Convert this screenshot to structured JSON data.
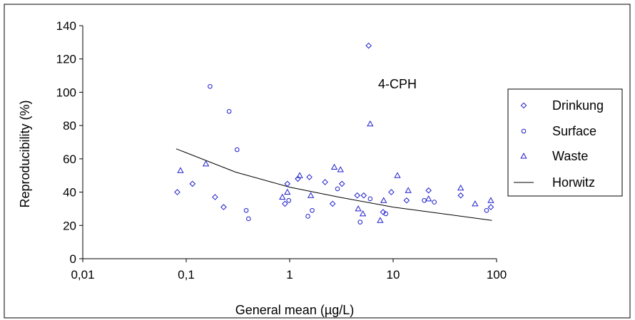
{
  "chart_data": {
    "type": "scatter",
    "xlabel": "General mean (µg/L)",
    "ylabel": "Reproducibility (%)",
    "annotation": "4-CPH",
    "x_scale": "log",
    "xlim": [
      0.01,
      100
    ],
    "ylim": [
      0,
      140
    ],
    "x_ticks": [
      0.01,
      0.1,
      1,
      10,
      100
    ],
    "x_tick_labels": [
      "0,01",
      "0,1",
      "1",
      "10",
      "100"
    ],
    "y_ticks": [
      0,
      20,
      40,
      60,
      80,
      100,
      120,
      140
    ],
    "y_tick_labels": [
      "0",
      "20",
      "40",
      "60",
      "80",
      "100",
      "120",
      "140"
    ],
    "grid": false,
    "legend_position": "right",
    "marker_color": "#1f1fcc",
    "line_color": "#000000",
    "series": [
      {
        "name": "Drinkung",
        "marker": "diamond",
        "points": [
          [
            0.082,
            40
          ],
          [
            0.115,
            45
          ],
          [
            0.19,
            37
          ],
          [
            0.23,
            31
          ],
          [
            0.9,
            33
          ],
          [
            0.95,
            45
          ],
          [
            1.2,
            48
          ],
          [
            1.55,
            49
          ],
          [
            2.2,
            46
          ],
          [
            2.6,
            33
          ],
          [
            3.2,
            45
          ],
          [
            4.5,
            38
          ],
          [
            5.2,
            38
          ],
          [
            5.8,
            128
          ],
          [
            8.0,
            28
          ],
          [
            9.6,
            40
          ],
          [
            13.5,
            35
          ],
          [
            22,
            41
          ],
          [
            45,
            38
          ],
          [
            88,
            31
          ]
        ]
      },
      {
        "name": "Surface",
        "marker": "circle",
        "points": [
          [
            0.17,
            103.5
          ],
          [
            0.26,
            88.5
          ],
          [
            0.31,
            65.5
          ],
          [
            0.38,
            29
          ],
          [
            0.4,
            24
          ],
          [
            0.98,
            35
          ],
          [
            1.5,
            25.5
          ],
          [
            1.65,
            29
          ],
          [
            2.9,
            42
          ],
          [
            4.8,
            22
          ],
          [
            6.0,
            36
          ],
          [
            8.5,
            27
          ],
          [
            20,
            35
          ],
          [
            25,
            34
          ],
          [
            80,
            29
          ]
        ]
      },
      {
        "name": "Waste",
        "marker": "triangle",
        "points": [
          [
            0.088,
            53
          ],
          [
            0.155,
            57
          ],
          [
            0.85,
            37
          ],
          [
            0.95,
            40
          ],
          [
            1.25,
            50
          ],
          [
            1.6,
            38
          ],
          [
            2.7,
            55
          ],
          [
            3.1,
            53.5
          ],
          [
            4.6,
            30
          ],
          [
            5.1,
            27
          ],
          [
            6.0,
            81
          ],
          [
            7.5,
            23
          ],
          [
            8.1,
            35
          ],
          [
            11,
            50
          ],
          [
            14,
            41
          ],
          [
            22,
            36
          ],
          [
            45,
            42.5
          ],
          [
            62,
            33
          ],
          [
            88,
            35
          ]
        ]
      }
    ],
    "line": {
      "name": "Horwitz",
      "points": [
        [
          0.08,
          66
        ],
        [
          0.3,
          52
        ],
        [
          1,
          43
        ],
        [
          3,
          37
        ],
        [
          10,
          31
        ],
        [
          30,
          27
        ],
        [
          90,
          23
        ]
      ]
    }
  }
}
